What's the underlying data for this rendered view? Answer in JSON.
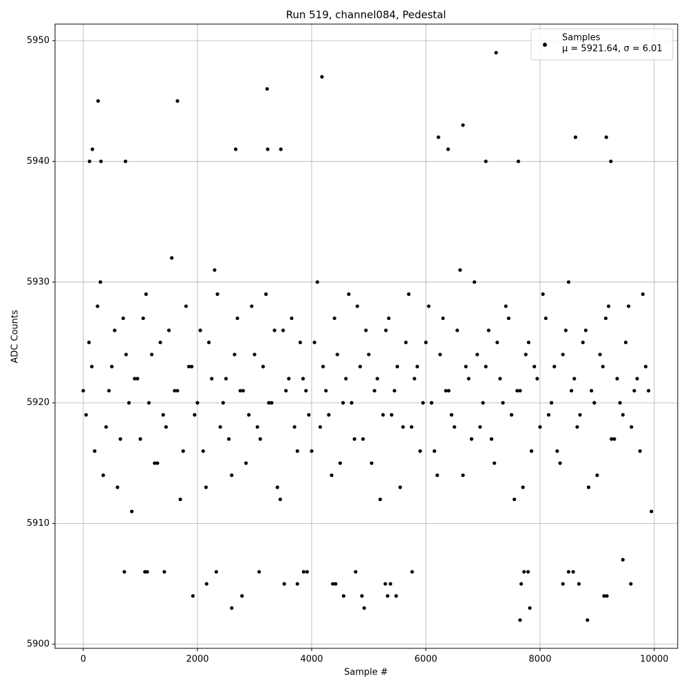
{
  "chart_data": {
    "type": "scatter",
    "title": "Run 519, channel084, Pedestal",
    "x_label": "Sample #",
    "y_label": "ADC Counts",
    "xlim": [
      -494,
      10410
    ],
    "ylim": [
      5899.66,
      5951.37
    ],
    "xticks": [
      0,
      2000,
      4000,
      6000,
      8000,
      10000
    ],
    "yticks": [
      5900,
      5910,
      5920,
      5930,
      5940,
      5950
    ],
    "grid": true,
    "legend_loc": "upper right",
    "legend_stats": "μ = 5921.64, σ = 6.01",
    "series": [
      {
        "name": "Samples",
        "color": "#000000",
        "x": [
          0,
          100,
          200,
          300,
          400,
          500,
          600,
          700,
          800,
          900,
          1000,
          1100,
          1200,
          1300,
          1400,
          1500,
          1600,
          1700,
          1800,
          1900,
          2000,
          2100,
          2200,
          2300,
          2400,
          2500,
          2600,
          2700,
          2800,
          2900,
          3000,
          3100,
          3200,
          3300,
          3400,
          3500,
          3600,
          3700,
          3800,
          3900,
          4000,
          4100,
          4200,
          4300,
          4400,
          4500,
          4600,
          4700,
          4800,
          4900,
          5000,
          5100,
          5200,
          5300,
          5400,
          5500,
          5600,
          5700,
          5800,
          5900,
          6000,
          6100,
          6200,
          6300,
          6400,
          6500,
          6600,
          6700,
          6800,
          6900,
          7000,
          7100,
          7200,
          7300,
          7400,
          7500,
          7600,
          7700,
          7800,
          7900,
          8000,
          8100,
          8200,
          8300,
          8400,
          8500,
          8600,
          8700,
          8800,
          8900,
          9000,
          9100,
          9200,
          9300,
          9400,
          9500,
          9600,
          9700,
          9800,
          9900,
          50,
          150,
          250,
          350,
          450,
          550,
          650,
          750,
          850,
          950,
          1050,
          1150,
          1250,
          1350,
          1450,
          1550,
          1650,
          1750,
          1850,
          1950,
          2050,
          2150,
          2250,
          2350,
          2450,
          2550,
          2650,
          2750,
          2850,
          2950,
          3050,
          3150,
          3250,
          3350,
          3450,
          3550,
          3650,
          3750,
          3850,
          3950,
          4050,
          4150,
          4250,
          4350,
          4450,
          4550,
          4650,
          4750,
          4850,
          4950,
          5050,
          5150,
          5250,
          5350,
          5450,
          5550,
          5650,
          5750,
          5850,
          5950,
          6050,
          6150,
          6250,
          6350,
          6450,
          6550,
          6650,
          6750,
          6850,
          6950,
          7050,
          7150,
          7250,
          7350,
          7450,
          7550,
          7650,
          7750,
          7850,
          7950,
          8050,
          8150,
          8250,
          8350,
          8450,
          8550,
          8650,
          8750,
          8850,
          8950,
          9050,
          9150,
          9250,
          9350,
          9450,
          9550,
          9650,
          9750,
          9850,
          9950,
          260,
          160,
          110,
          310,
          1650,
          3220,
          4180,
          7230,
          6650,
          6220,
          6390,
          2670,
          3230,
          3460,
          8620,
          9160,
          9240,
          7050,
          7620,
          740,
          2600,
          4920,
          7650,
          7820,
          8830,
          1920,
          2780,
          4560,
          4880,
          5330,
          5480,
          9120,
          9170,
          2160,
          3520,
          3750,
          4370,
          4420,
          5290,
          5380,
          8400,
          8680,
          9590,
          7670,
          720,
          1080,
          1120,
          1420,
          2330,
          3080,
          3860,
          3920,
          4770,
          5760,
          8500,
          8580,
          7720,
          7790,
          9450
        ],
        "values": [
          5921,
          5925,
          5916,
          5930,
          5918,
          5923,
          5913,
          5927,
          5920,
          5922,
          5917,
          5929,
          5924,
          5915,
          5919,
          5926,
          5921,
          5912,
          5928,
          5923,
          5920,
          5916,
          5925,
          5931,
          5918,
          5922,
          5914,
          5927,
          5921,
          5919,
          5924,
          5917,
          5929,
          5920,
          5913,
          5926,
          5922,
          5918,
          5925,
          5921,
          5916,
          5930,
          5923,
          5919,
          5927,
          5915,
          5922,
          5920,
          5928,
          5917,
          5924,
          5921,
          5912,
          5926,
          5919,
          5923,
          5918,
          5929,
          5922,
          5916,
          5925,
          5920,
          5914,
          5927,
          5921,
          5918,
          5931,
          5923,
          5917,
          5924,
          5920,
          5926,
          5915,
          5922,
          5928,
          5919,
          5921,
          5913,
          5925,
          5923,
          5918,
          5927,
          5920,
          5916,
          5924,
          5930,
          5922,
          5919,
          5926,
          5921,
          5914,
          5923,
          5928,
          5917,
          5920,
          5925,
          5918,
          5922,
          5929,
          5921,
          5919,
          5923,
          5928,
          5914,
          5921,
          5926,
          5917,
          5924,
          5911,
          5922,
          5927,
          5920,
          5915,
          5925,
          5918,
          5932,
          5921,
          5916,
          5923,
          5919,
          5926,
          5913,
          5922,
          5929,
          5920,
          5917,
          5924,
          5921,
          5915,
          5928,
          5918,
          5923,
          5920,
          5926,
          5912,
          5921,
          5927,
          5916,
          5922,
          5919,
          5925,
          5918,
          5921,
          5914,
          5924,
          5920,
          5929,
          5917,
          5923,
          5926,
          5915,
          5922,
          5919,
          5927,
          5921,
          5913,
          5925,
          5918,
          5923,
          5920,
          5928,
          5916,
          5924,
          5921,
          5919,
          5926,
          5914,
          5922,
          5930,
          5918,
          5923,
          5917,
          5925,
          5920,
          5927,
          5912,
          5921,
          5924,
          5916,
          5922,
          5929,
          5919,
          5923,
          5915,
          5926,
          5921,
          5918,
          5925,
          5913,
          5920,
          5924,
          5927,
          5917,
          5922,
          5919,
          5928,
          5921,
          5916,
          5923,
          5911,
          5945,
          5941,
          5940,
          5940,
          5945,
          5946,
          5947,
          5949,
          5943,
          5942,
          5941,
          5941,
          5941,
          5941,
          5942,
          5942,
          5940,
          5940,
          5940,
          5940,
          5903,
          5903,
          5902,
          5903,
          5902,
          5904,
          5904,
          5904,
          5904,
          5904,
          5904,
          5904,
          5904,
          5905,
          5905,
          5905,
          5905,
          5905,
          5905,
          5905,
          5905,
          5905,
          5905,
          5905,
          5906,
          5906,
          5906,
          5906,
          5906,
          5906,
          5906,
          5906,
          5906,
          5906,
          5906,
          5906,
          5906,
          5906,
          5907
        ]
      }
    ]
  }
}
